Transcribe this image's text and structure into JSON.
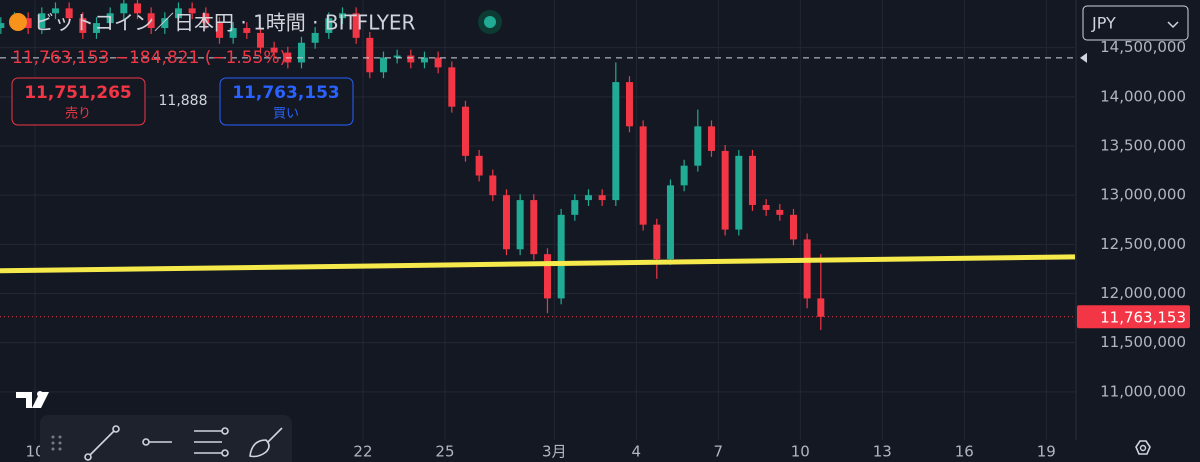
{
  "header": {
    "symbol": "ビットコイン／日本円 · 1時間 · BITFLYER",
    "currency": "JPY",
    "quote": {
      "price": "11,763,153",
      "change": "−184,821",
      "percent": "(−1.55%)"
    }
  },
  "order_panel": {
    "sell": {
      "price": "11,751,265",
      "label": "売り"
    },
    "spread": "11,888",
    "buy": {
      "price": "11,763,153",
      "label": "買い"
    }
  },
  "chart_data": {
    "type": "candlestick",
    "x": [
      8.75,
      9.25,
      9.75,
      10.25,
      10.75,
      11.25,
      11.75,
      12.25,
      12.75,
      13.25,
      13.75,
      14.25,
      14.75,
      15.25,
      15.75,
      16.25,
      16.75,
      17.25,
      17.75,
      18.25,
      18.75,
      19.25,
      19.75,
      20.25,
      20.75,
      21.25,
      21.75,
      22.25,
      22.75,
      23.25,
      23.75,
      24.25,
      24.75,
      25.25,
      25.75,
      26.25,
      26.75,
      27.25,
      27.75,
      28.25,
      28.75,
      29.25,
      29.75,
      30.25,
      30.75,
      31.25,
      31.75,
      32.25,
      32.75,
      33.25,
      33.75,
      34.25,
      34.75,
      35.25,
      35.75,
      36.25,
      36.75,
      37.25,
      37.75,
      38.25,
      38.75
    ],
    "open": [
      14700000,
      14750000,
      14800000,
      14700000,
      14850000,
      14900000,
      14800000,
      14650000,
      14750000,
      14850000,
      14950000,
      14850000,
      14700000,
      14800000,
      14900000,
      14850000,
      14750000,
      14600000,
      14700000,
      14650000,
      14500000,
      14450000,
      14350000,
      14550000,
      14650000,
      14800000,
      14850000,
      14600000,
      14250000,
      14400000,
      14420000,
      14350000,
      14400000,
      14300000,
      13900000,
      13400000,
      13200000,
      13000000,
      12450000,
      12950000,
      12400000,
      11950000,
      12800000,
      12950000,
      13000000,
      12950000,
      14150000,
      13700000,
      12700000,
      12350000,
      13100000,
      13300000,
      13700000,
      13450000,
      12650000,
      13400000,
      12900000,
      12850000,
      12800000,
      12550000,
      11950000
    ],
    "high": [
      14810000,
      14860000,
      14860000,
      14910000,
      14960000,
      14960000,
      14860000,
      14810000,
      14910000,
      15010000,
      15010000,
      14910000,
      14860000,
      14960000,
      14960000,
      14910000,
      14810000,
      14760000,
      14760000,
      14710000,
      14560000,
      14510000,
      14610000,
      14710000,
      14860000,
      14910000,
      14910000,
      14660000,
      14460000,
      14480000,
      14480000,
      14460000,
      14460000,
      14360000,
      13960000,
      13460000,
      13260000,
      13060000,
      13010000,
      13010000,
      12460000,
      12860000,
      13010000,
      13060000,
      13060000,
      14350000,
      14210000,
      13760000,
      12760000,
      13160000,
      13360000,
      13870000,
      13760000,
      13510000,
      13460000,
      13460000,
      12960000,
      12910000,
      12860000,
      12610000,
      12400000
    ],
    "low": [
      14640000,
      14690000,
      14640000,
      14640000,
      14790000,
      14740000,
      14590000,
      14590000,
      14690000,
      14790000,
      14790000,
      14640000,
      14640000,
      14740000,
      14790000,
      14690000,
      14540000,
      14540000,
      14590000,
      14440000,
      14390000,
      14290000,
      14290000,
      14490000,
      14590000,
      14740000,
      14540000,
      14190000,
      14190000,
      14340000,
      14290000,
      14290000,
      14240000,
      13840000,
      13340000,
      13140000,
      12940000,
      12390000,
      12390000,
      12340000,
      11800000,
      11890000,
      12740000,
      12890000,
      12890000,
      12890000,
      13640000,
      12640000,
      12150000,
      12290000,
      13040000,
      13240000,
      13390000,
      12590000,
      12590000,
      12840000,
      12790000,
      12740000,
      12490000,
      11850000,
      11630000
    ],
    "close": [
      14750000,
      14800000,
      14700000,
      14850000,
      14900000,
      14800000,
      14650000,
      14750000,
      14850000,
      14950000,
      14850000,
      14700000,
      14800000,
      14900000,
      14850000,
      14750000,
      14600000,
      14700000,
      14650000,
      14500000,
      14450000,
      14350000,
      14550000,
      14650000,
      14800000,
      14850000,
      14600000,
      14250000,
      14400000,
      14420000,
      14350000,
      14400000,
      14300000,
      13900000,
      13400000,
      13200000,
      13000000,
      12450000,
      12950000,
      12400000,
      11950000,
      12800000,
      12950000,
      13000000,
      12950000,
      14150000,
      13700000,
      12700000,
      12350000,
      13100000,
      13300000,
      13700000,
      13450000,
      12650000,
      13400000,
      12900000,
      12850000,
      12800000,
      12550000,
      11950000,
      11763153
    ],
    "up_color": "#22ab94",
    "down_color": "#f23645",
    "xlim": [
      8.72,
      48.05
    ],
    "ylim": [
      10510000,
      14985000
    ],
    "yticks": [
      {
        "value": 11000000,
        "label": "11,000,000"
      },
      {
        "value": 11500000,
        "label": "11,500,000"
      },
      {
        "value": 12000000,
        "label": "12,000,000"
      },
      {
        "value": 12500000,
        "label": "12,500,000"
      },
      {
        "value": 13000000,
        "label": "13,000,000"
      },
      {
        "value": 13500000,
        "label": "13,500,000"
      },
      {
        "value": 14000000,
        "label": "14,000,000"
      },
      {
        "value": 14500000,
        "label": "14,500,000"
      }
    ],
    "xticks": [
      10,
      22,
      25,
      {
        "value": 29,
        "label": "3月"
      },
      {
        "value": 32,
        "label": "4"
      },
      {
        "value": 35,
        "label": "7"
      },
      {
        "value": 38,
        "label": "10"
      },
      {
        "value": 41,
        "label": "13"
      },
      {
        "value": 44,
        "label": "16"
      },
      {
        "value": 47,
        "label": "19"
      }
    ],
    "grid": true,
    "trend_line": {
      "x": [
        8.72,
        48.05
      ],
      "y": [
        12231000,
        12373000
      ],
      "color": "#f5e94b"
    },
    "high_line": 14397000,
    "last_price": {
      "value": 11763153,
      "label": "11,763,153"
    },
    "last_price_color": "#f23645"
  }
}
